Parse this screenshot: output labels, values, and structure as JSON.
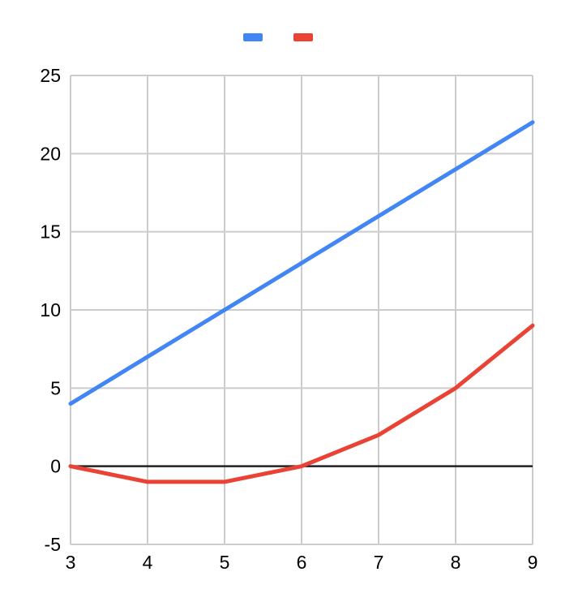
{
  "chart_data": {
    "type": "line",
    "title": "",
    "xlabel": "",
    "ylabel": "",
    "x": [
      3,
      4,
      5,
      6,
      7,
      8,
      9
    ],
    "series": [
      {
        "name": "",
        "color": "#4285F4",
        "values": [
          4,
          7,
          10,
          13,
          16,
          19,
          22
        ]
      },
      {
        "name": "",
        "color": "#EA4335",
        "values": [
          0,
          -1,
          -1,
          0,
          2,
          5,
          9
        ]
      }
    ],
    "xlim": [
      3,
      9
    ],
    "ylim": [
      -5,
      25
    ],
    "xticks": [
      3,
      4,
      5,
      6,
      7,
      8,
      9
    ],
    "yticks": [
      -5,
      0,
      5,
      10,
      15,
      20,
      25
    ],
    "grid": true,
    "gridline_color": "#cccccc",
    "zero_line_color": "#212121",
    "axis_label_color": "#000000",
    "legend_position": "top-center",
    "background_color": "#ffffff",
    "line_width": 5
  }
}
